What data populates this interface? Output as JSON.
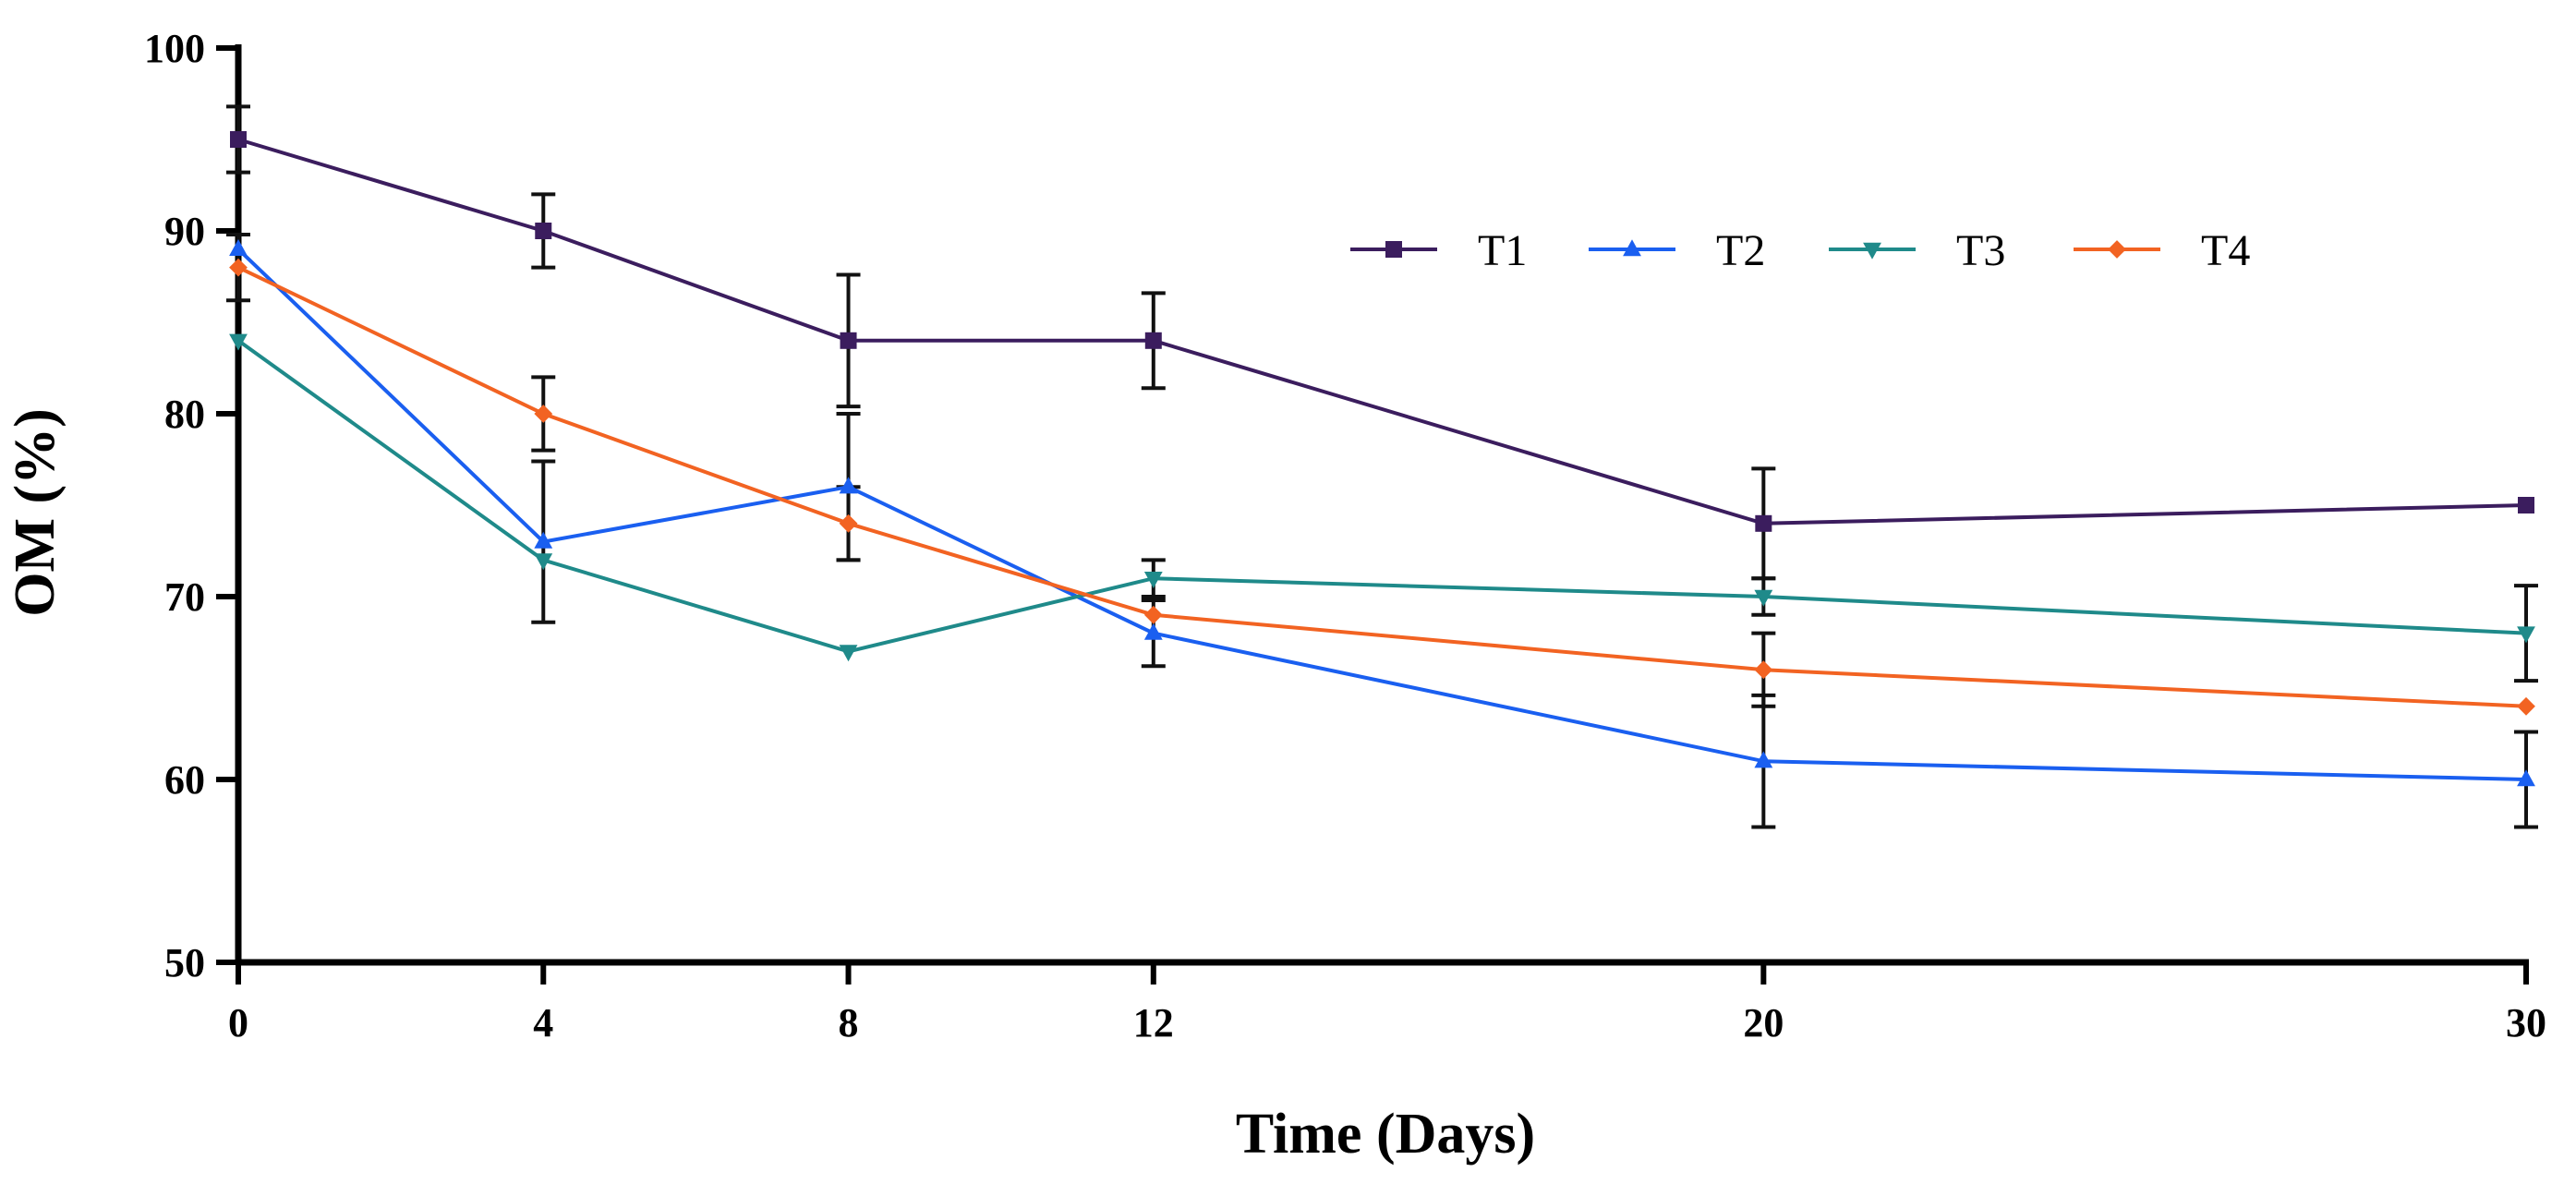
{
  "chart_data": {
    "type": "line",
    "title": "",
    "xlabel": "Time (Days)",
    "ylabel": "OM (%)",
    "x": [
      0,
      4,
      8,
      12,
      20,
      30
    ],
    "xticks": [
      "0",
      "4",
      "8",
      "12",
      "20",
      "30"
    ],
    "xlim": [
      0,
      30
    ],
    "ylim": [
      50,
      100
    ],
    "yticks": [
      "50",
      "60",
      "70",
      "80",
      "90",
      "100"
    ],
    "grid": false,
    "legend_position": "top-right",
    "series": [
      {
        "name": "T1",
        "color": "#3b1d5e",
        "marker": "square",
        "values": [
          95,
          90,
          84,
          84,
          74,
          75
        ],
        "errors": [
          1.8,
          2.0,
          3.6,
          2.6,
          3.0,
          0
        ]
      },
      {
        "name": "T2",
        "color": "#1a5ff0",
        "marker": "triangle-up",
        "values": [
          89,
          73,
          76,
          68,
          61,
          60
        ],
        "errors": [
          0,
          4.4,
          4.0,
          1.8,
          3.6,
          2.6
        ]
      },
      {
        "name": "T3",
        "color": "#1f8a8a",
        "marker": "triangle-down",
        "values": [
          84,
          72,
          67,
          71,
          70,
          68
        ],
        "errors": [
          0,
          0,
          0,
          1.0,
          1.0,
          2.6
        ]
      },
      {
        "name": "T4",
        "color": "#f26322",
        "marker": "diamond",
        "values": [
          88,
          80,
          74,
          69,
          66,
          64
        ],
        "errors": [
          1.8,
          2.0,
          2.0,
          0,
          2.0,
          0
        ]
      }
    ]
  }
}
